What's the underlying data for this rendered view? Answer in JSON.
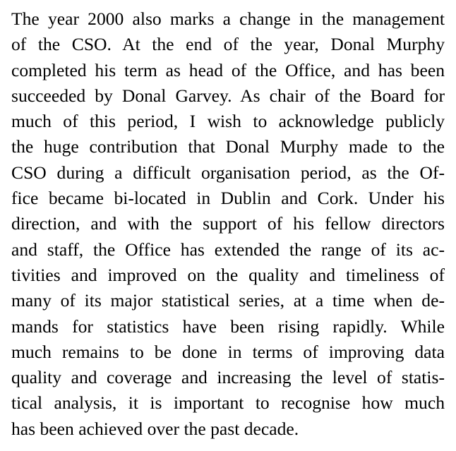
{
  "paragraph": {
    "lines": [
      "The year 2000 also marks a change in the management",
      "of the CSO. At the end of the year, Donal Murphy",
      "completed his term as head of the Office, and has been",
      "succeeded by Donal Garvey. As chair of the Board for",
      "much of this period, I wish to acknowledge publicly",
      "the huge contribution that Donal Murphy made to the",
      "CSO during a difficult organisation period, as the Of-",
      "fice became bi-located in Dublin and Cork. Under his",
      "direction, and with the support of his fellow directors",
      "and staff, the Office has extended the range of its ac-",
      "tivities and improved on the quality and timeliness of",
      "many of its major statistical series, at a time when de-",
      "mands for statistics have been rising rapidly. While",
      "much remains to be done in terms of improving data",
      "quality and coverage and increasing the level of statis-",
      "tical analysis, it is important to recognise how much",
      "has been achieved over the past decade."
    ]
  }
}
